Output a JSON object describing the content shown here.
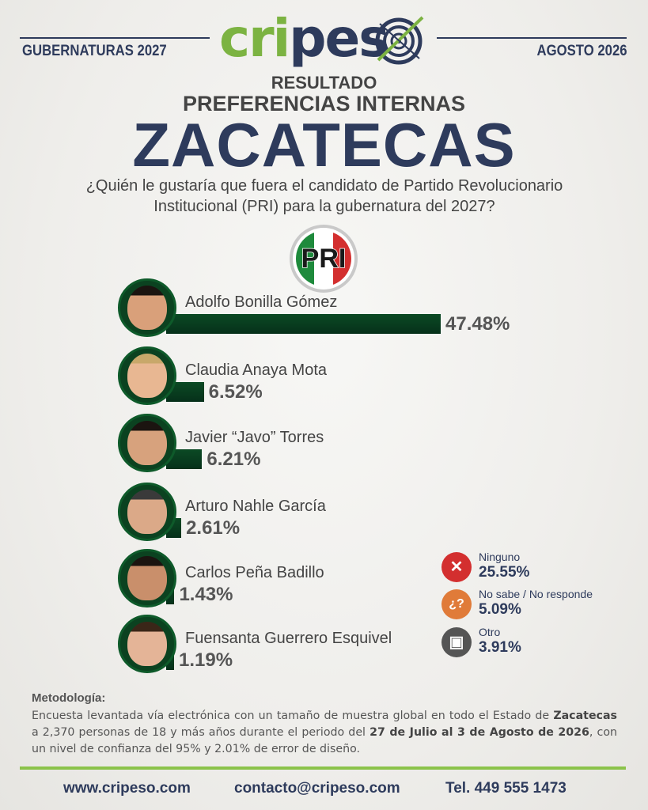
{
  "header": {
    "left": "GUBERNATURAS 2027",
    "right": "AGOSTO 2026",
    "logo_green": "cri",
    "logo_blue": "pes",
    "logo_icon": "target-icon"
  },
  "titles": {
    "line1": "RESULTADO",
    "line2": "PREFERENCIAS INTERNAS",
    "state": "ZACATECAS"
  },
  "question": "¿Quién le gustaría que fuera el candidato de Partido Revolucionario Institucional (PRI) para la gubernatura del 2027?",
  "party": {
    "name": "PRI",
    "icon": "pri-logo-icon"
  },
  "chart_data": {
    "type": "bar",
    "orientation": "horizontal",
    "categories": [
      "Adolfo Bonilla Gómez",
      "Claudia Anaya Mota",
      "Javier “Javo” Torres",
      "Arturo Nahle García",
      "Carlos Peña Badillo",
      "Fuensanta Guerrero Esquivel"
    ],
    "values": [
      47.48,
      6.52,
      6.21,
      2.61,
      1.43,
      1.19
    ],
    "value_labels": [
      "47.48%",
      "6.52%",
      "6.21%",
      "2.61%",
      "1.43%",
      "1.19%"
    ],
    "bar_color": "#0b4a24",
    "additional": [
      {
        "label": "Ninguno",
        "value": 25.55,
        "value_label": "25.55%",
        "icon": "x-icon",
        "color": "#d32f2f"
      },
      {
        "label": "No sabe / No responde",
        "value": 5.09,
        "value_label": "5.09%",
        "icon": "question-icon",
        "color": "#e07b39"
      },
      {
        "label": "Otro",
        "value": 3.91,
        "value_label": "3.91%",
        "icon": "ballot-box-icon",
        "color": "#555555"
      }
    ]
  },
  "methodology": {
    "title": "Metodología:",
    "p1": "Encuesta levantada vía electrónica con un tamaño de muestra global en todo el Estado de ",
    "state": "Zacatecas",
    "p2": " a 2,370 personas de 18 y más años durante el periodo del ",
    "period": "27 de Julio al 3 de Agosto de 2026",
    "p3": ", con un nivel de confianza del 95% y 2.01% de error de diseño."
  },
  "footer": {
    "website": "www.cripeso.com",
    "email": "contacto@cripeso.com",
    "phone": "Tel. 449 555 1473"
  },
  "colors": {
    "navy": "#2e3b5c",
    "green_brand": "#7cb342",
    "bar_green": "#0b4a24",
    "pri_green": "#1e8a3c",
    "pri_red": "#d32f2f"
  }
}
